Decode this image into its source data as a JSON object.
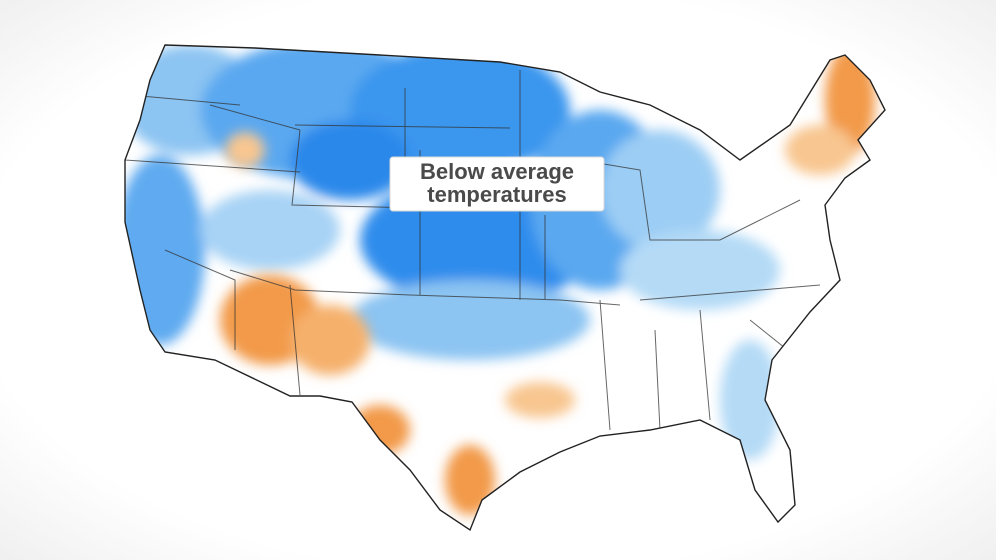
{
  "label": {
    "lines": [
      "Below average",
      "temperatures"
    ]
  }
}
